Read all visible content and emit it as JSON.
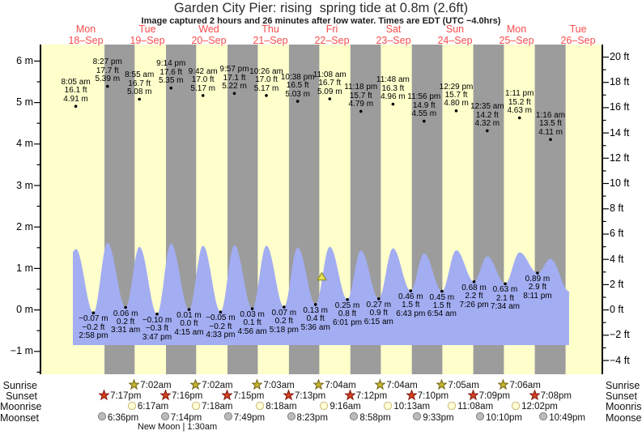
{
  "chart_data": {
    "type": "area",
    "title": "Garden City Pier: rising  spring tide at 0.8m (2.6ft)",
    "subtitle": "Image captured 2 hours and 26 minutes after low water. Times are EDT (UTC −4.0hrs)",
    "days": [
      {
        "name": "Mon",
        "date": "18–Sep"
      },
      {
        "name": "Tue",
        "date": "19–Sep"
      },
      {
        "name": "Wed",
        "date": "20–Sep"
      },
      {
        "name": "Thu",
        "date": "21–Sep"
      },
      {
        "name": "Fri",
        "date": "22–Sep"
      },
      {
        "name": "Sat",
        "date": "23–Sep"
      },
      {
        "name": "Sun",
        "date": "24–Sep"
      },
      {
        "name": "Mon",
        "date": "25–Sep"
      },
      {
        "name": "Tue",
        "date": "26–Sep"
      }
    ],
    "y_axis_left": {
      "unit": "m",
      "min": -1,
      "max": 6,
      "tick_step": 1
    },
    "y_axis_right": {
      "unit": "ft",
      "min": -4,
      "max": 20,
      "tick_step": 2
    },
    "tide_events": [
      {
        "type": "high",
        "day": 0,
        "time": "8:05 am",
        "ft": 16.1,
        "m": 4.91
      },
      {
        "type": "low",
        "day": 0,
        "time": "2:58 pm",
        "ft": -0.2,
        "m": -0.07
      },
      {
        "type": "high",
        "day": 0,
        "time": "8:27 pm",
        "ft": 17.7,
        "m": 5.39
      },
      {
        "type": "low",
        "day": 1,
        "time": "3:31 am",
        "ft": 0.2,
        "m": 0.06
      },
      {
        "type": "high",
        "day": 1,
        "time": "8:55 am",
        "ft": 16.7,
        "m": 5.08
      },
      {
        "type": "low",
        "day": 1,
        "time": "3:47 pm",
        "ft": -0.3,
        "m": -0.1
      },
      {
        "type": "high",
        "day": 1,
        "time": "9:14 pm",
        "ft": 17.6,
        "m": 5.35
      },
      {
        "type": "low",
        "day": 2,
        "time": "4:15 am",
        "ft": 0.0,
        "m": 0.01
      },
      {
        "type": "high",
        "day": 2,
        "time": "9:42 am",
        "ft": 17.0,
        "m": 5.17
      },
      {
        "type": "low",
        "day": 2,
        "time": "4:33 pm",
        "ft": -0.2,
        "m": -0.05
      },
      {
        "type": "high",
        "day": 2,
        "time": "9:57 pm",
        "ft": 17.1,
        "m": 5.22
      },
      {
        "type": "low",
        "day": 3,
        "time": "4:56 am",
        "ft": 0.1,
        "m": 0.03
      },
      {
        "type": "high",
        "day": 3,
        "time": "10:26 am",
        "ft": 17.0,
        "m": 5.17
      },
      {
        "type": "low",
        "day": 3,
        "time": "5:18 pm",
        "ft": 0.2,
        "m": 0.07
      },
      {
        "type": "high",
        "day": 3,
        "time": "10:38 pm",
        "ft": 16.5,
        "m": 5.03
      },
      {
        "type": "low",
        "day": 4,
        "time": "5:36 am",
        "ft": 0.4,
        "m": 0.13
      },
      {
        "type": "high",
        "day": 4,
        "time": "11:08 am",
        "ft": 16.7,
        "m": 5.09
      },
      {
        "type": "low",
        "day": 4,
        "time": "6:01 pm",
        "ft": 0.8,
        "m": 0.25
      },
      {
        "type": "high",
        "day": 4,
        "time": "11:18 pm",
        "ft": 15.7,
        "m": 4.79
      },
      {
        "type": "low",
        "day": 5,
        "time": "6:15 am",
        "ft": 0.9,
        "m": 0.27
      },
      {
        "type": "high",
        "day": 5,
        "time": "11:48 am",
        "ft": 16.3,
        "m": 4.96
      },
      {
        "type": "low",
        "day": 5,
        "time": "6:43 pm",
        "ft": 1.5,
        "m": 0.46
      },
      {
        "type": "high",
        "day": 5,
        "time": "11:56 pm",
        "ft": 14.9,
        "m": 4.55
      },
      {
        "type": "low",
        "day": 6,
        "time": "6:54 am",
        "ft": 1.5,
        "m": 0.45
      },
      {
        "type": "high",
        "day": 6,
        "time": "12:29 pm",
        "ft": 15.7,
        "m": 4.8
      },
      {
        "type": "low",
        "day": 6,
        "time": "7:26 pm",
        "ft": 2.2,
        "m": 0.68
      },
      {
        "type": "high",
        "day": 7,
        "time": "12:35 am",
        "ft": 14.2,
        "m": 4.32
      },
      {
        "type": "low",
        "day": 7,
        "time": "7:34 am",
        "ft": 2.1,
        "m": 0.63
      },
      {
        "type": "high",
        "day": 7,
        "time": "1:11 pm",
        "ft": 15.2,
        "m": 4.63
      },
      {
        "type": "low",
        "day": 7,
        "time": "8:11 pm",
        "ft": 2.9,
        "m": 0.89
      },
      {
        "type": "high",
        "day": 8,
        "time": "1:16 am",
        "ft": 13.5,
        "m": 4.11
      }
    ],
    "current_marker": {
      "height_m": 0.8,
      "height_ft": 2.6,
      "hours_after_low": 2.4333,
      "low_event_index": 15
    },
    "astro": {
      "sunrise": {
        "label": "Sunrise",
        "events": [
          {
            "day": 1,
            "time": "7:02am"
          },
          {
            "day": 2,
            "time": "7:02am"
          },
          {
            "day": 3,
            "time": "7:03am"
          },
          {
            "day": 4,
            "time": "7:04am"
          },
          {
            "day": 5,
            "time": "7:04am"
          },
          {
            "day": 6,
            "time": "7:05am"
          },
          {
            "day": 7,
            "time": "7:06am"
          }
        ]
      },
      "sunset": {
        "label": "Sunset",
        "events": [
          {
            "day": 0,
            "time": "7:17pm"
          },
          {
            "day": 1,
            "time": "7:16pm"
          },
          {
            "day": 2,
            "time": "7:15pm"
          },
          {
            "day": 3,
            "time": "7:13pm"
          },
          {
            "day": 4,
            "time": "7:12pm"
          },
          {
            "day": 5,
            "time": "7:10pm"
          },
          {
            "day": 6,
            "time": "7:09pm"
          },
          {
            "day": 7,
            "time": "7:08pm"
          }
        ]
      },
      "moonrise": {
        "label": "Moonrise",
        "events": [
          {
            "day": 1,
            "time": "6:17am"
          },
          {
            "day": 2,
            "time": "7:18am"
          },
          {
            "day": 3,
            "time": "8:18am"
          },
          {
            "day": 4,
            "time": "9:16am"
          },
          {
            "day": 5,
            "time": "10:13am"
          },
          {
            "day": 6,
            "time": "11:08am"
          },
          {
            "day": 7,
            "time": "12:02pm"
          }
        ]
      },
      "moonset": {
        "label": "Moonset",
        "events": [
          {
            "day": 0,
            "time": "6:36pm"
          },
          {
            "day": 1,
            "time": "7:14pm"
          },
          {
            "day": 2,
            "time": "7:49pm"
          },
          {
            "day": 3,
            "time": "8:23pm"
          },
          {
            "day": 4,
            "time": "8:58pm"
          },
          {
            "day": 5,
            "time": "9:33pm"
          },
          {
            "day": 6,
            "time": "10:10pm"
          },
          {
            "day": 7,
            "time": "10:49pm"
          }
        ]
      }
    },
    "new_moon": "New Moon | 1:30am"
  },
  "colors": {
    "plot_background": "#ffffcc",
    "night_band": "#9c9c9c",
    "water": "#a2adf2",
    "day_label": "#f94c4c",
    "axis": "#000000",
    "dot": "#000000",
    "marker_fill": "#e9e455",
    "marker_stroke": "#8f8f23",
    "sunrise_star_fill": "#c8b42e",
    "sunrise_star_stroke": "#6e6414",
    "sunset_star_fill": "#d6411f",
    "sunset_star_stroke": "#7c150b",
    "moonrise_fill": "#ffffd6",
    "moonrise_stroke": "#c9b878",
    "moonset_fill": "#bbbbbb",
    "moonset_stroke": "#838383"
  }
}
